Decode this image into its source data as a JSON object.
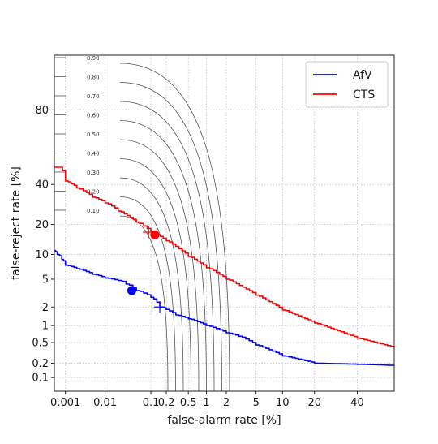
{
  "chart_data": {
    "type": "line",
    "title": "",
    "xlabel": "false-alarm rate [%]",
    "ylabel": "false-reject rate [%]",
    "xscale": "probit",
    "yscale": "probit",
    "xlim": [
      0.0005,
      60
    ],
    "ylim": [
      0.05,
      95
    ],
    "grid": true,
    "legend": "top-right",
    "x_ticks": [
      {
        "value": 0.001,
        "label": "0.001"
      },
      {
        "value": 0.01,
        "label": "0.01"
      },
      {
        "value": 0.1,
        "label": "0.1"
      },
      {
        "value": 0.2,
        "label": "0.2"
      },
      {
        "value": 0.5,
        "label": "0.5"
      },
      {
        "value": 1,
        "label": "1"
      },
      {
        "value": 2,
        "label": "2"
      },
      {
        "value": 5,
        "label": "5"
      },
      {
        "value": 10,
        "label": "10"
      },
      {
        "value": 20,
        "label": "20"
      },
      {
        "value": 40,
        "label": "40"
      }
    ],
    "y_ticks": [
      {
        "value": 0.1,
        "label": "0.1"
      },
      {
        "value": 0.2,
        "label": "0.2"
      },
      {
        "value": 0.5,
        "label": "0.5"
      },
      {
        "value": 1,
        "label": "1"
      },
      {
        "value": 2,
        "label": "2"
      },
      {
        "value": 5,
        "label": "5"
      },
      {
        "value": 10,
        "label": "10"
      },
      {
        "value": 20,
        "label": "20"
      },
      {
        "value": 40,
        "label": "40"
      },
      {
        "value": 80,
        "label": "80"
      }
    ],
    "series": [
      {
        "name": "AfV",
        "color": "#0000ff",
        "x": [
          0.0005,
          0.0006,
          0.0008,
          0.001,
          0.002,
          0.005,
          0.01,
          0.02,
          0.03,
          0.05,
          0.1,
          0.15,
          0.3,
          0.5,
          1,
          2,
          3,
          5,
          10,
          20,
          40,
          60
        ],
        "y": [
          11,
          10,
          8.8,
          7.5,
          6.8,
          5.8,
          5.2,
          4.8,
          4.3,
          3.5,
          2.8,
          2.0,
          1.5,
          1.3,
          1.0,
          0.75,
          0.65,
          0.45,
          0.28,
          0.2,
          0.19,
          0.18
        ],
        "marker_dot": {
          "x": 0.04,
          "y": 3.5
        },
        "marker_cross": {
          "x": 0.15,
          "y": 2.0
        }
      },
      {
        "name": "CTS",
        "color": "#ff0000",
        "x": [
          0.0005,
          0.0007,
          0.001,
          0.002,
          0.005,
          0.01,
          0.02,
          0.05,
          0.1,
          0.2,
          0.5,
          1,
          2,
          5,
          10,
          20,
          40,
          60
        ],
        "y": [
          50,
          50,
          42,
          38,
          33,
          30,
          26,
          21,
          17,
          14,
          9.5,
          7,
          5,
          3,
          1.8,
          1.1,
          0.6,
          0.4
        ],
        "marker_dot": {
          "x": 0.12,
          "y": 16
        },
        "marker_cross": {
          "x": 0.09,
          "y": 17
        }
      }
    ],
    "iso_curves": [
      {
        "label": "0.90",
        "value": 0.9
      },
      {
        "label": "0.80",
        "value": 0.8
      },
      {
        "label": "0.70",
        "value": 0.7
      },
      {
        "label": "0.60",
        "value": 0.6
      },
      {
        "label": "0.50",
        "value": 0.5
      },
      {
        "label": "0.40",
        "value": 0.4
      },
      {
        "label": "0.30",
        "value": 0.3
      },
      {
        "label": "0.20",
        "value": 0.2
      },
      {
        "label": "0.10",
        "value": 0.1
      }
    ]
  }
}
